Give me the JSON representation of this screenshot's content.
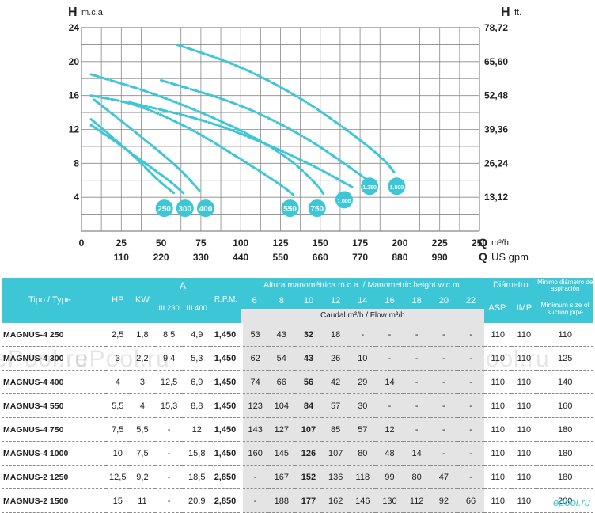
{
  "chart_data": {
    "type": "line",
    "ylabel_left": {
      "symbol": "H",
      "unit": "m.c.a."
    },
    "ylabel_right": {
      "symbol": "H",
      "unit": "ft."
    },
    "xlabel_top": {
      "symbol": "Q",
      "unit": "m³/h"
    },
    "xlabel_bottom": {
      "symbol": "Q",
      "unit": "US gpm"
    },
    "ylim": [
      0,
      24
    ],
    "xlim": [
      0,
      250
    ],
    "y_ticks": [
      "4",
      "8",
      "12",
      "16",
      "20",
      "24"
    ],
    "y_ticks_right": [
      "13,12",
      "26,24",
      "39,36",
      "52,48",
      "65,60",
      "78,72"
    ],
    "x_ticks": [
      "0",
      "25",
      "50",
      "75",
      "100",
      "125",
      "150",
      "175",
      "200",
      "225",
      "250"
    ],
    "x_ticks_secondary": [
      "110",
      "220",
      "330",
      "440",
      "550",
      "660",
      "770",
      "880",
      "990"
    ],
    "grid": true,
    "series": [
      {
        "name": "250",
        "points": [
          [
            6,
            13.2
          ],
          [
            20,
            11
          ],
          [
            35,
            8.5
          ],
          [
            48,
            6
          ],
          [
            58,
            4.5
          ]
        ],
        "label_at": [
          52,
          2.7
        ]
      },
      {
        "name": "300",
        "points": [
          [
            6,
            12.5
          ],
          [
            22,
            10.5
          ],
          [
            40,
            8
          ],
          [
            55,
            6
          ],
          [
            64,
            4.5
          ]
        ],
        "label_at": [
          65,
          2.7
        ]
      },
      {
        "name": "400",
        "points": [
          [
            8,
            15.5
          ],
          [
            25,
            13
          ],
          [
            45,
            10
          ],
          [
            62,
            7.3
          ],
          [
            74,
            4.8
          ]
        ],
        "label_at": [
          78,
          2.7
        ]
      },
      {
        "name": "550",
        "points": [
          [
            6,
            16
          ],
          [
            35,
            15
          ],
          [
            70,
            12
          ],
          [
            100,
            8.5
          ],
          [
            125,
            5.5
          ],
          [
            133,
            4.3
          ]
        ],
        "label_at": [
          131,
          2.7
        ]
      },
      {
        "name": "750",
        "points": [
          [
            6,
            18.5
          ],
          [
            50,
            16
          ],
          [
            100,
            12
          ],
          [
            130,
            8.7
          ],
          [
            148,
            5.5
          ],
          [
            152,
            4.4
          ]
        ],
        "label_at": [
          148,
          2.7
        ]
      },
      {
        "name": "1.000",
        "points": [
          [
            30,
            15.2
          ],
          [
            80,
            13
          ],
          [
            120,
            10
          ],
          [
            150,
            7.3
          ],
          [
            170,
            5.2
          ]
        ],
        "label_at": [
          165,
          3.7
        ]
      },
      {
        "name": "1.250",
        "points": [
          [
            50,
            17.8
          ],
          [
            100,
            15
          ],
          [
            140,
            11.2
          ],
          [
            165,
            8
          ],
          [
            180,
            6
          ]
        ],
        "label_at": [
          181,
          5.3
        ]
      },
      {
        "name": "1.500",
        "points": [
          [
            60,
            22
          ],
          [
            100,
            19.5
          ],
          [
            140,
            15.5
          ],
          [
            170,
            11.5
          ],
          [
            190,
            8.5
          ],
          [
            197,
            6.8
          ]
        ],
        "label_at": [
          198,
          5.3
        ]
      }
    ]
  },
  "table": {
    "headers": {
      "tipo": "Tipo / Type",
      "hp": "HP",
      "kw": "KW",
      "a": "A",
      "a_sub1": "III 230",
      "a_sub2": "III 400",
      "rpm": "R.P.M.",
      "altura": "Altura manométrica m.c.a. / Manometric height w.c.m.",
      "caudal": "Caudal m³/h / Flow m³/h",
      "flows": [
        "6",
        "8",
        "10",
        "12",
        "14",
        "16",
        "18",
        "20",
        "22"
      ],
      "diametro": "Diámetro",
      "asp": "ASP.",
      "imp": "IMP",
      "min1": "Minimo diámetro de aspiración",
      "min2": "Minimum size of suction pipe"
    },
    "rows": [
      {
        "tipo": "MAGNUS-4 250",
        "hp": "2,5",
        "kw": "1,8",
        "a230": "8,5",
        "a400": "4,9",
        "rpm": "1,450",
        "h": [
          "53",
          "43",
          "32",
          "18",
          "-",
          "-",
          "-",
          "-",
          "-"
        ],
        "asp": "110",
        "imp": "110",
        "min": "110"
      },
      {
        "tipo": "MAGNUS-4 300",
        "hp": "3",
        "kw": "2,2",
        "a230": "9,4",
        "a400": "5,3",
        "rpm": "1,450",
        "h": [
          "62",
          "54",
          "43",
          "26",
          "10",
          "-",
          "-",
          "-",
          "-"
        ],
        "asp": "110",
        "imp": "110",
        "min": "125"
      },
      {
        "tipo": "MAGNUS-4 400",
        "hp": "4",
        "kw": "3",
        "a230": "12,5",
        "a400": "6,9",
        "rpm": "1,450",
        "h": [
          "74",
          "66",
          "56",
          "42",
          "29",
          "14",
          "-",
          "-",
          "-"
        ],
        "asp": "110",
        "imp": "110",
        "min": "140"
      },
      {
        "tipo": "MAGNUS-4 550",
        "hp": "5,5",
        "kw": "4",
        "a230": "15,3",
        "a400": "8,8",
        "rpm": "1,450",
        "h": [
          "123",
          "104",
          "84",
          "57",
          "30",
          "-",
          "-",
          "-",
          "-"
        ],
        "asp": "110",
        "imp": "110",
        "min": "160"
      },
      {
        "tipo": "MAGNUS-4 750",
        "hp": "7,5",
        "kw": "5,5",
        "a230": "-",
        "a400": "12",
        "rpm": "1,450",
        "h": [
          "143",
          "127",
          "107",
          "85",
          "57",
          "12",
          "-",
          "-",
          "-"
        ],
        "asp": "110",
        "imp": "110",
        "min": "180"
      },
      {
        "tipo": "MAGNUS-4 1000",
        "hp": "10",
        "kw": "7,5",
        "a230": "-",
        "a400": "15,8",
        "rpm": "1,450",
        "h": [
          "160",
          "145",
          "126",
          "107",
          "80",
          "48",
          "14",
          "-",
          "-"
        ],
        "asp": "110",
        "imp": "110",
        "min": "180"
      },
      {
        "tipo": "MAGNUS-2 1250",
        "hp": "12,5",
        "kw": "9,2",
        "a230": "-",
        "a400": "18,5",
        "rpm": "2,850",
        "h": [
          "-",
          "167",
          "152",
          "136",
          "118",
          "99",
          "80",
          "47",
          "-"
        ],
        "asp": "110",
        "imp": "110",
        "min": "180"
      },
      {
        "tipo": "MAGNUS-2 1500",
        "hp": "15",
        "kw": "11",
        "a230": "-",
        "a400": "20,9",
        "rpm": "2,850",
        "h": [
          "-",
          "188",
          "177",
          "162",
          "146",
          "130",
          "112",
          "92",
          "66"
        ],
        "asp": "110",
        "imp": "110",
        "min": "200"
      }
    ]
  },
  "watermarks": [
    "ePool.ru",
    "ePool.ru",
    "ePool.ru",
    "ePool.ru"
  ],
  "logo_text": "epool.ru",
  "colors": {
    "accent": "#3cc6d6",
    "curve": "#3cc6d6",
    "grid": "#888888",
    "shade": "#e4e4e4"
  }
}
